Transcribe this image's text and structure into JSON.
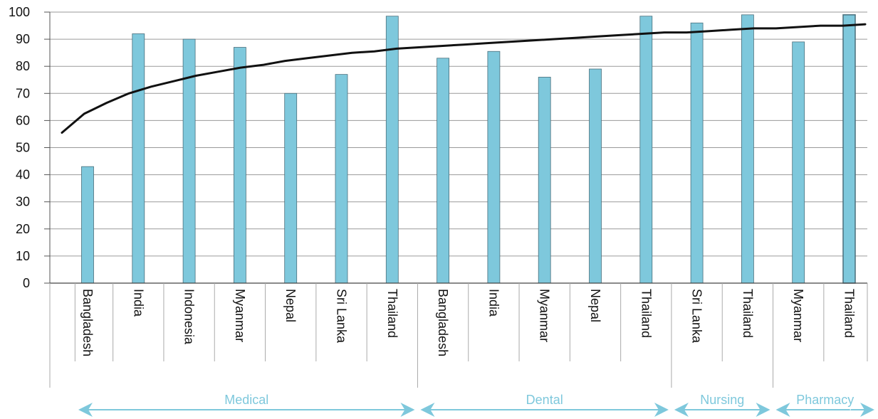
{
  "chart_data": {
    "type": "bar",
    "title": "",
    "xlabel": "",
    "ylabel": "",
    "ylim": [
      0,
      100
    ],
    "yticks": [
      0,
      10,
      20,
      30,
      40,
      50,
      60,
      70,
      80,
      90,
      100
    ],
    "grid": true,
    "legend": "none",
    "categories": [
      "Bangladesh",
      "India",
      "Indonesia",
      "Myanmar",
      "Nepal",
      "Sri Lanka",
      "Thailand",
      "Bangladesh",
      "India",
      "Myanmar",
      "Nepal",
      "Thailand",
      "Sri Lanka",
      "Thailand",
      "Myanmar",
      "Thailand"
    ],
    "series": [
      {
        "values": [
          43,
          92,
          90,
          87,
          70,
          77,
          98.5,
          83,
          85.5,
          76,
          79,
          98.5,
          96,
          99,
          89,
          99
        ]
      }
    ],
    "trend_line": {
      "x_range": [
        0,
        1
      ],
      "values": [
        55.5,
        62.5,
        66.5,
        70,
        72.5,
        74.5,
        76.5,
        78,
        79.5,
        80.5,
        82,
        83,
        84,
        85,
        85.5,
        86.5,
        87,
        87.5,
        88,
        88.5,
        89,
        89.5,
        90,
        90.5,
        91,
        91.5,
        92,
        92.5,
        92.5,
        93,
        93.5,
        94,
        94,
        94.5,
        95,
        95,
        95.5
      ]
    },
    "groups": [
      {
        "label": "Medical",
        "start": 0,
        "end": 6
      },
      {
        "label": "Dental",
        "start": 7,
        "end": 11
      },
      {
        "label": "Nursing",
        "start": 12,
        "end": 13
      },
      {
        "label": "Pharmacy",
        "start": 14,
        "end": 15
      }
    ],
    "colors": {
      "bar": "#7ec8dc",
      "bar_edge": "#4a6f7c",
      "trend": "#111111",
      "grid": "#9a9a9a",
      "group": "#7ec8dc"
    }
  }
}
